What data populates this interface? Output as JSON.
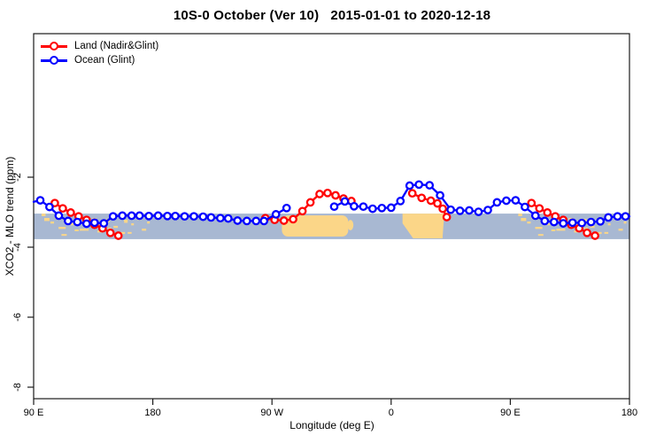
{
  "title": "10S-0 October (Ver 10)   2015-01-01 to 2020-12-18",
  "legend": {
    "items": [
      {
        "label": "Land (Nadir&Glint)",
        "color": "#ff0000"
      },
      {
        "label": "Ocean (Glint)",
        "color": "#0000ff"
      }
    ]
  },
  "chart_data": {
    "type": "line",
    "title": "10S-0 October (Ver 10)   2015-01-01 to 2020-12-18",
    "xlabel": "Longitude (deg E)",
    "ylabel": "XCO2 - MLO trend (ppm)",
    "xlim": [
      90,
      540
    ],
    "ylim": [
      -8.33,
      2.1
    ],
    "grid": false,
    "legend_position": "top-left",
    "x_ticks": [
      {
        "lon": 90,
        "label": "90 E"
      },
      {
        "lon": 180,
        "label": "180"
      },
      {
        "lon": 270,
        "label": "90 W"
      },
      {
        "lon": 360,
        "label": "0"
      },
      {
        "lon": 450,
        "label": "90 E"
      },
      {
        "lon": 540,
        "label": "180"
      }
    ],
    "y_ticks": [
      {
        "value": -2,
        "label": "-2"
      },
      {
        "value": -4,
        "label": "-4"
      },
      {
        "value": -6,
        "label": "-6"
      },
      {
        "value": -8,
        "label": "-8"
      }
    ],
    "map_band": {
      "ocean_color": "#a8b8d2",
      "land_color": "#fbd688",
      "top_value": -3.04,
      "bottom_value": -3.77,
      "patches": [
        {
          "name": "maritime-continent-islands",
          "type": "speckles",
          "repeat_offset_lon": 360,
          "rects": [
            [
              96.0,
              0.0,
              3.0,
              0.1
            ],
            [
              98.0,
              0.17,
              4.0,
              0.12
            ],
            [
              102.7,
              0.31,
              2.7,
              0.08
            ],
            [
              106.1,
              0.08,
              2.0,
              0.12
            ],
            [
              108.8,
              0.52,
              5.4,
              0.08
            ],
            [
              111.0,
              0.8,
              4.0,
              0.07
            ],
            [
              114.8,
              0.21,
              3.3,
              0.12
            ],
            [
              118.1,
              0.38,
              2.0,
              0.08
            ],
            [
              121.0,
              0.62,
              3.0,
              0.07
            ],
            [
              123.5,
              0.1,
              2.7,
              0.12
            ],
            [
              124.8,
              0.59,
              6.7,
              0.08
            ],
            [
              129.5,
              0.31,
              2.0,
              0.08
            ],
            [
              134.2,
              0.17,
              3.3,
              0.12
            ],
            [
              138.2,
              0.66,
              4.7,
              0.08
            ],
            [
              139.6,
              0.38,
              2.7,
              0.08
            ],
            [
              144.9,
              0.21,
              2.7,
              0.12
            ],
            [
              146.0,
              0.55,
              2.5,
              0.07
            ],
            [
              150.3,
              0.48,
              3.3,
              0.08
            ],
            [
              151.5,
              0.85,
              3.5,
              0.07
            ],
            [
              155.0,
              0.72,
              4.0,
              0.08
            ],
            [
              158.3,
              0.24,
              2.7,
              0.12
            ],
            [
              161.0,
              0.72,
              3.0,
              0.07
            ],
            [
              163.7,
              0.38,
              2.0,
              0.08
            ],
            [
              168.3,
              0.17,
              2.7,
              0.08
            ],
            [
              171.7,
              0.59,
              3.3,
              0.08
            ],
            [
              175.7,
              0.31,
              2.0,
              0.08
            ]
          ]
        },
        {
          "name": "south-america",
          "type": "round_rect",
          "lon0": 277.5,
          "lon1": 327.6,
          "top": 0.07,
          "bottom": 0.9
        },
        {
          "name": "south-america-tail",
          "type": "round_rect",
          "lon0": 327.0,
          "lon1": 331.5,
          "top": 0.25,
          "bottom": 0.65
        },
        {
          "name": "africa",
          "type": "polygon",
          "points": [
            [
              368.6,
              0.0
            ],
            [
              400.1,
              0.0
            ],
            [
              398.8,
              0.97
            ],
            [
              376.6,
              0.97
            ],
            [
              368.6,
              0.38
            ]
          ]
        }
      ]
    },
    "series": [
      {
        "name": "Land (Nadir&Glint)",
        "color": "#ff0000",
        "segments": [
          {
            "points": [
              [
                106,
                -2.74
              ],
              [
                112,
                -2.89
              ],
              [
                118,
                -3.01
              ],
              [
                124,
                -3.12
              ],
              [
                130,
                -3.22
              ],
              [
                136,
                -3.36
              ],
              [
                142,
                -3.46
              ],
              [
                148,
                -3.59
              ],
              [
                154,
                -3.67
              ]
            ]
          },
          {
            "points": [
              [
                265,
                -3.17
              ],
              [
                272,
                -3.22
              ],
              [
                279,
                -3.24
              ],
              [
                286,
                -3.2
              ],
              [
                293,
                -2.97
              ],
              [
                299,
                -2.72
              ],
              [
                306,
                -2.48
              ],
              [
                312,
                -2.45
              ],
              [
                318,
                -2.52
              ],
              [
                324,
                -2.61
              ],
              [
                330,
                -2.68
              ]
            ]
          },
          {
            "points": [
              [
                376,
                -2.46
              ],
              [
                383,
                -2.59
              ],
              [
                390,
                -2.67
              ],
              [
                395,
                -2.75
              ],
              [
                399,
                -2.9
              ],
              [
                402,
                -3.14
              ]
            ]
          },
          {
            "points": [
              [
                466,
                -2.74
              ],
              [
                472,
                -2.89
              ],
              [
                478,
                -3.01
              ],
              [
                484,
                -3.12
              ],
              [
                490,
                -3.22
              ],
              [
                496,
                -3.36
              ],
              [
                502,
                -3.46
              ],
              [
                508,
                -3.59
              ],
              [
                514,
                -3.67
              ]
            ]
          }
        ]
      },
      {
        "name": "Ocean (Glint)",
        "color": "#0000ff",
        "segments": [
          {
            "pre": [
              90,
              -2.7
            ],
            "points": [
              [
                95,
                -2.66
              ],
              [
                102,
                -2.85
              ],
              [
                109,
                -3.1
              ],
              [
                116,
                -3.25
              ],
              [
                123,
                -3.28
              ],
              [
                130,
                -3.33
              ],
              [
                136,
                -3.3
              ],
              [
                143,
                -3.32
              ],
              [
                150,
                -3.12
              ],
              [
                157,
                -3.1
              ],
              [
                164,
                -3.1
              ],
              [
                170,
                -3.1
              ],
              [
                177,
                -3.11
              ],
              [
                184,
                -3.1
              ],
              [
                191,
                -3.11
              ],
              [
                197,
                -3.11
              ],
              [
                204,
                -3.12
              ],
              [
                211,
                -3.12
              ],
              [
                218,
                -3.13
              ],
              [
                224,
                -3.15
              ],
              [
                231,
                -3.17
              ],
              [
                237,
                -3.18
              ],
              [
                244,
                -3.24
              ],
              [
                251,
                -3.25
              ],
              [
                258,
                -3.25
              ],
              [
                264,
                -3.25
              ],
              [
                273,
                -3.06
              ],
              [
                281,
                -2.88
              ]
            ]
          },
          {
            "post": [
              540,
              -3.12
            ],
            "points": [
              [
                317,
                -2.84
              ],
              [
                325,
                -2.69
              ],
              [
                332,
                -2.83
              ],
              [
                339,
                -2.84
              ],
              [
                346,
                -2.9
              ],
              [
                353,
                -2.88
              ],
              [
                360,
                -2.87
              ],
              [
                367,
                -2.68
              ],
              [
                374,
                -2.24
              ],
              [
                381,
                -2.21
              ],
              [
                389,
                -2.23
              ],
              [
                397,
                -2.52
              ],
              [
                405,
                -2.93
              ],
              [
                412,
                -2.96
              ],
              [
                419,
                -2.95
              ],
              [
                426,
                -2.99
              ],
              [
                433,
                -2.94
              ],
              [
                440,
                -2.72
              ],
              [
                447,
                -2.67
              ],
              [
                454,
                -2.66
              ],
              [
                461,
                -2.85
              ],
              [
                469,
                -3.1
              ],
              [
                476,
                -3.25
              ],
              [
                483,
                -3.28
              ],
              [
                490,
                -3.32
              ],
              [
                497,
                -3.3
              ],
              [
                504,
                -3.31
              ],
              [
                511,
                -3.28
              ],
              [
                518,
                -3.26
              ],
              [
                524,
                -3.15
              ],
              [
                531,
                -3.12
              ],
              [
                537,
                -3.12
              ]
            ]
          }
        ]
      }
    ]
  }
}
